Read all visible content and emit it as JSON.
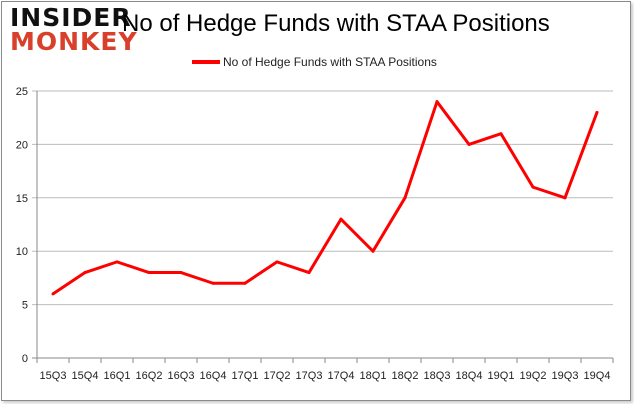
{
  "logo": {
    "line1": "INSIDER",
    "line2": "MONKEY"
  },
  "chart_data": {
    "type": "line",
    "title": "No of Hedge Funds with STAA Positions",
    "xlabel": "",
    "ylabel": "",
    "categories": [
      "15Q3",
      "15Q4",
      "16Q1",
      "16Q2",
      "16Q3",
      "16Q4",
      "17Q1",
      "17Q2",
      "17Q3",
      "17Q4",
      "18Q1",
      "18Q2",
      "18Q3",
      "18Q4",
      "19Q1",
      "19Q2",
      "19Q3",
      "19Q4"
    ],
    "series": [
      {
        "name": "No of Hedge Funds with STAA Positions",
        "color": "#ff0000",
        "values": [
          6,
          8,
          9,
          8,
          8,
          7,
          7,
          9,
          8,
          13,
          10,
          15,
          24,
          20,
          21,
          16,
          15,
          23
        ]
      }
    ],
    "ylim": [
      0,
      25
    ],
    "yticks": [
      0,
      5,
      10,
      15,
      20,
      25
    ],
    "grid": true,
    "legend": "top-center"
  }
}
